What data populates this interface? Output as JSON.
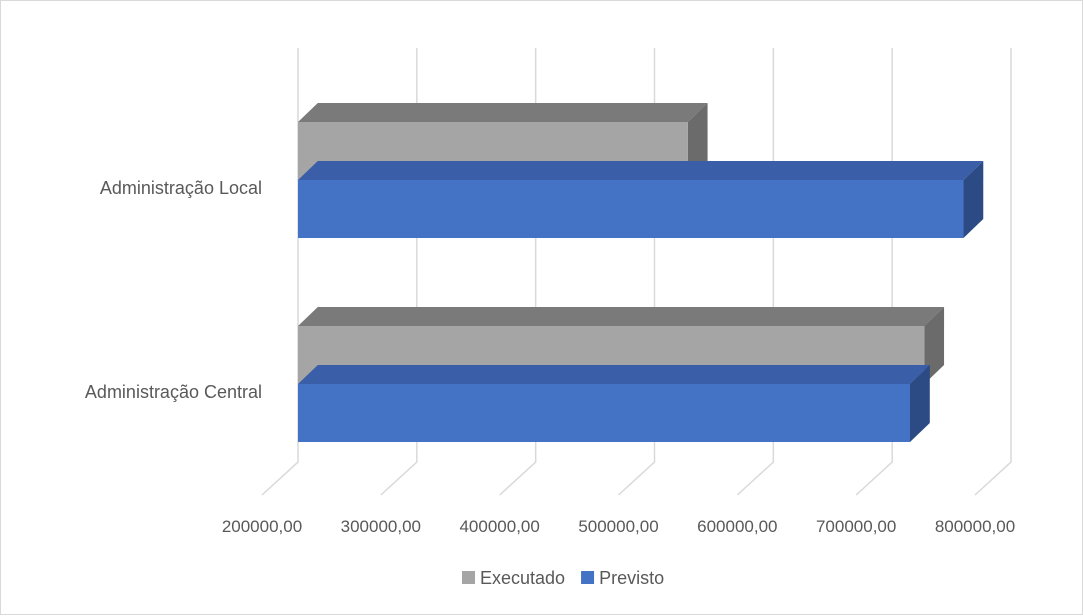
{
  "chart_data": {
    "type": "bar",
    "orientation": "horizontal",
    "style": "3d",
    "categories": [
      "Administração Local",
      "Administração Central"
    ],
    "series": [
      {
        "name": "Executado",
        "color": "#a5a5a5",
        "values": [
          528000,
          727000
        ]
      },
      {
        "name": "Previsto",
        "color": "#4472c4",
        "values": [
          760000,
          715000
        ]
      }
    ],
    "x_ticks": [
      "200000,00",
      "300000,00",
      "400000,00",
      "500000,00",
      "600000,00",
      "700000,00",
      "800000,00"
    ],
    "xlim": [
      200000,
      800000
    ],
    "grid": true,
    "legend": "bottom"
  }
}
